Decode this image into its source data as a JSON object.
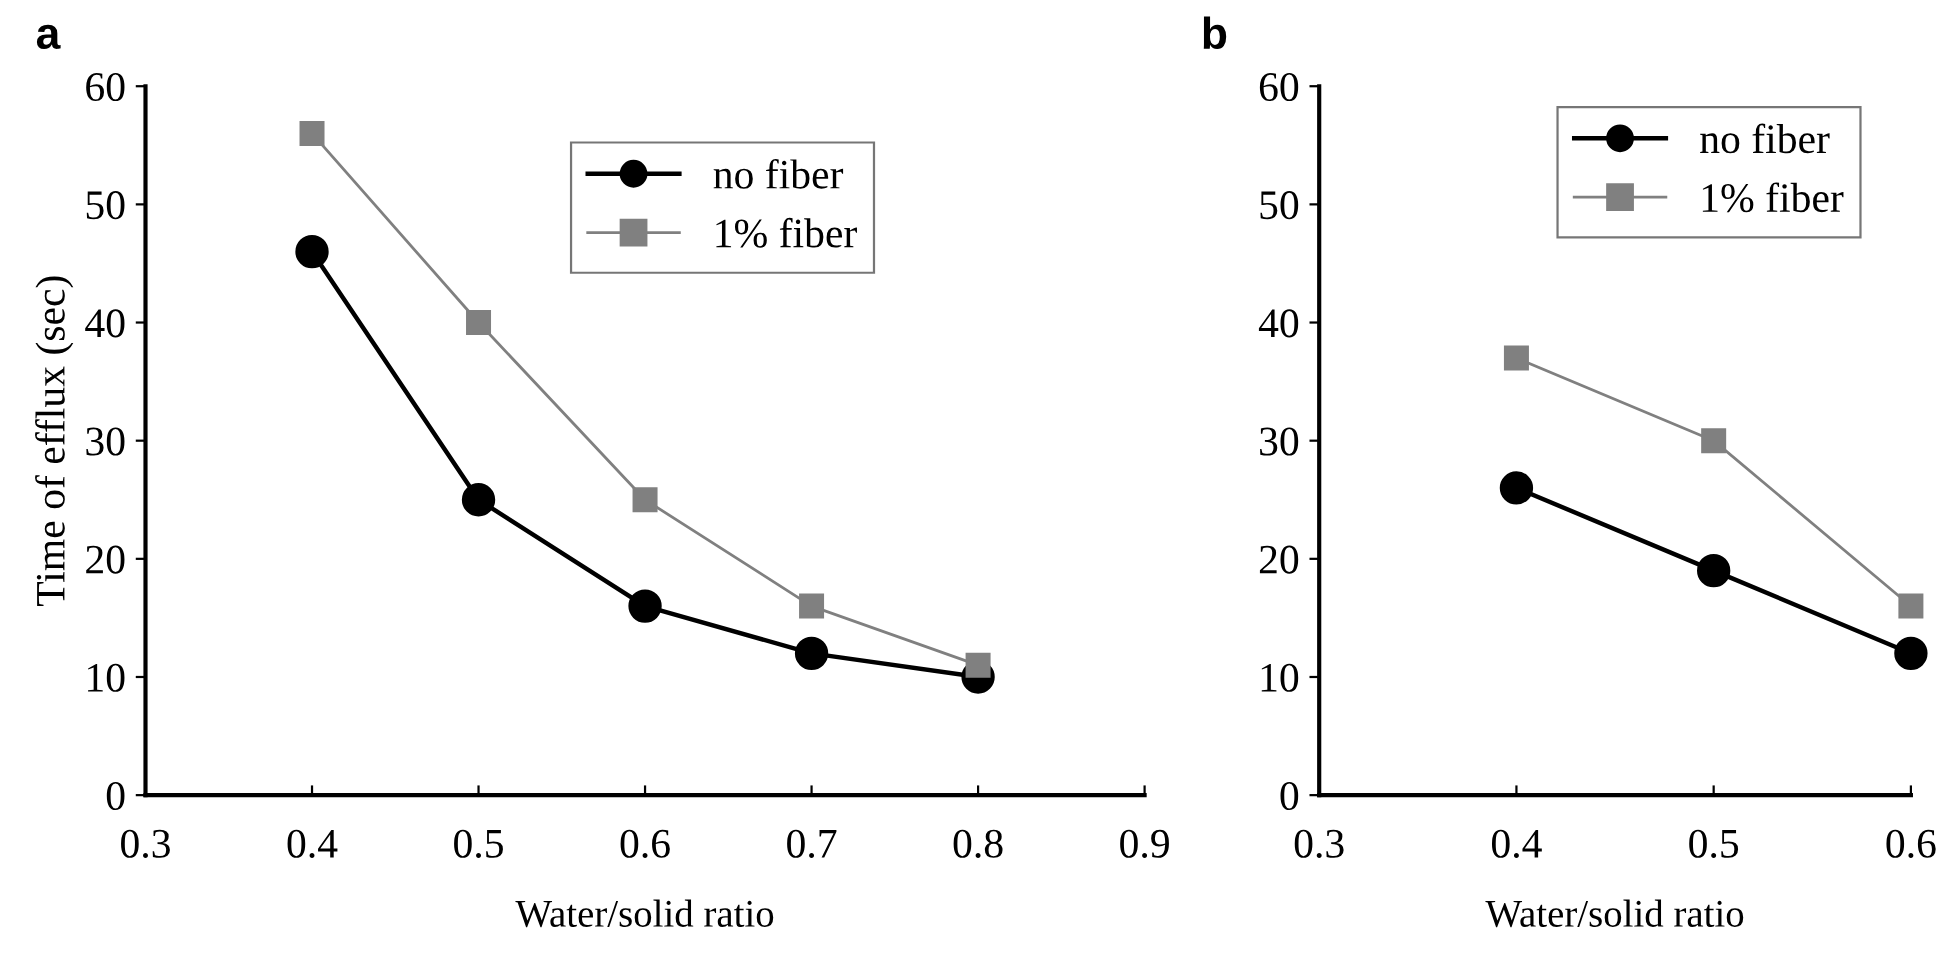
{
  "chart_data": [
    {
      "type": "line",
      "title": "a",
      "xlabel": "Water/solid ratio",
      "ylabel": "Time of efflux (sec)",
      "x": [
        0.4,
        0.5,
        0.6,
        0.7,
        0.8
      ],
      "series": [
        {
          "name": "no fiber",
          "color": "#000000",
          "marker": "circle",
          "values": [
            46,
            25,
            16,
            12,
            10
          ]
        },
        {
          "name": "1% fiber",
          "color": "#808080",
          "marker": "square",
          "values": [
            56,
            40,
            25,
            16,
            11
          ]
        }
      ],
      "xlim": [
        0.3,
        0.9
      ],
      "xticks": [
        0.3,
        0.4,
        0.5,
        0.6,
        0.7,
        0.8,
        0.9
      ],
      "ylim": [
        0,
        60
      ],
      "yticks": [
        0,
        10,
        20,
        30,
        40,
        50,
        60
      ],
      "grid": false,
      "legend": "top right",
      "line_style": "solid"
    },
    {
      "type": "line",
      "title": "b",
      "xlabel": "Water/solid ratio",
      "x": [
        0.4,
        0.5,
        0.6
      ],
      "series": [
        {
          "name": "no fiber",
          "color": "#000000",
          "marker": "circle",
          "values": [
            26,
            19,
            12
          ]
        },
        {
          "name": "1% fiber",
          "color": "#808080",
          "marker": "square",
          "values": [
            37,
            30,
            16
          ]
        }
      ],
      "xlim": [
        0.3,
        0.6
      ],
      "xticks": [
        0.3,
        0.4,
        0.5,
        0.6
      ],
      "ylim": [
        0,
        60
      ],
      "yticks": [
        0,
        10,
        20,
        30,
        40,
        50,
        60
      ],
      "grid": false,
      "legend": "top right",
      "line_style": "solid"
    }
  ]
}
